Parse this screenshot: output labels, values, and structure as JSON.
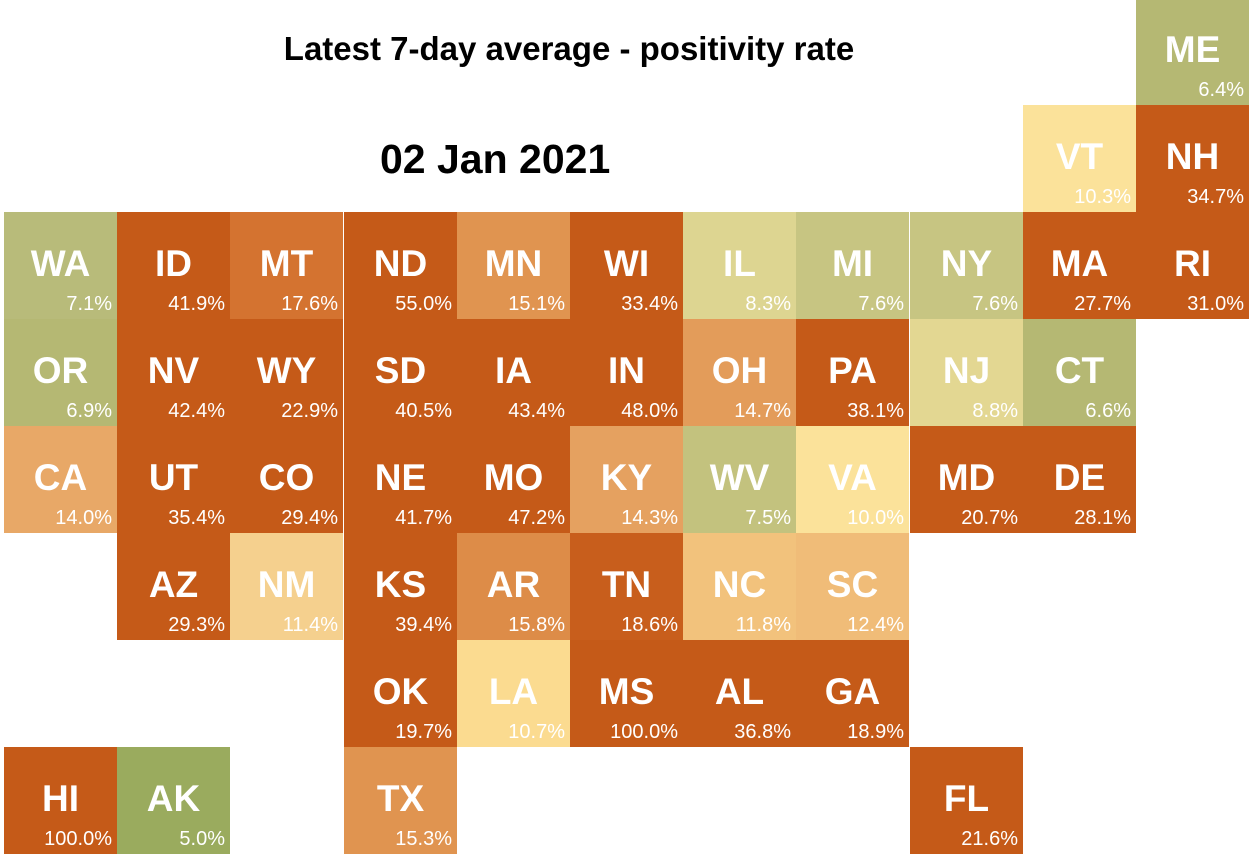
{
  "title": "Latest 7-day average - positivity rate",
  "date": "02 Jan 2021",
  "colors": {
    "green": "#9aab5e",
    "olive_green": "#b5b873",
    "light_olive": "#cfcb8b",
    "pale_yellow_green": "#ddd591",
    "pale_yellow": "#fbe29a",
    "light_orange": "#f2c27c",
    "orange_tan": "#e8a867",
    "orange": "#e09450",
    "dark_orange": "#d47330",
    "rust": "#c55a18"
  },
  "states": [
    {
      "abbr": "ME",
      "value": "6.4%",
      "color": "#b5b873"
    },
    {
      "abbr": "VT",
      "value": "10.3%",
      "color": "#fbe29a"
    },
    {
      "abbr": "NH",
      "value": "34.7%",
      "color": "#c55a18"
    },
    {
      "abbr": "WA",
      "value": "7.1%",
      "color": "#b8bb7a"
    },
    {
      "abbr": "ID",
      "value": "41.9%",
      "color": "#c55a18"
    },
    {
      "abbr": "MT",
      "value": "17.6%",
      "color": "#d47330"
    },
    {
      "abbr": "ND",
      "value": "55.0%",
      "color": "#c55a18"
    },
    {
      "abbr": "MN",
      "value": "15.1%",
      "color": "#e09450"
    },
    {
      "abbr": "WI",
      "value": "33.4%",
      "color": "#c55a18"
    },
    {
      "abbr": "IL",
      "value": "8.3%",
      "color": "#ddd591"
    },
    {
      "abbr": "MI",
      "value": "7.6%",
      "color": "#c7c582"
    },
    {
      "abbr": "NY",
      "value": "7.6%",
      "color": "#c7c582"
    },
    {
      "abbr": "MA",
      "value": "27.7%",
      "color": "#c55a18"
    },
    {
      "abbr": "RI",
      "value": "31.0%",
      "color": "#c55a18"
    },
    {
      "abbr": "OR",
      "value": "6.9%",
      "color": "#b5b873"
    },
    {
      "abbr": "NV",
      "value": "42.4%",
      "color": "#c55a18"
    },
    {
      "abbr": "WY",
      "value": "22.9%",
      "color": "#c55a18"
    },
    {
      "abbr": "SD",
      "value": "40.5%",
      "color": "#c55a18"
    },
    {
      "abbr": "IA",
      "value": "43.4%",
      "color": "#c55a18"
    },
    {
      "abbr": "IN",
      "value": "48.0%",
      "color": "#c55a18"
    },
    {
      "abbr": "OH",
      "value": "14.7%",
      "color": "#e39c5a"
    },
    {
      "abbr": "PA",
      "value": "38.1%",
      "color": "#c55a18"
    },
    {
      "abbr": "NJ",
      "value": "8.8%",
      "color": "#e3d792"
    },
    {
      "abbr": "CT",
      "value": "6.6%",
      "color": "#b5b873"
    },
    {
      "abbr": "CA",
      "value": "14.0%",
      "color": "#e8a867"
    },
    {
      "abbr": "UT",
      "value": "35.4%",
      "color": "#c55a18"
    },
    {
      "abbr": "CO",
      "value": "29.4%",
      "color": "#c55a18"
    },
    {
      "abbr": "NE",
      "value": "41.7%",
      "color": "#c55a18"
    },
    {
      "abbr": "MO",
      "value": "47.2%",
      "color": "#c55a18"
    },
    {
      "abbr": "KY",
      "value": "14.3%",
      "color": "#e5a160"
    },
    {
      "abbr": "WV",
      "value": "7.5%",
      "color": "#c3c27e"
    },
    {
      "abbr": "VA",
      "value": "10.0%",
      "color": "#fbe29a"
    },
    {
      "abbr": "MD",
      "value": "20.7%",
      "color": "#c55a18"
    },
    {
      "abbr": "DE",
      "value": "28.1%",
      "color": "#c55a18"
    },
    {
      "abbr": "AZ",
      "value": "29.3%",
      "color": "#c55a18"
    },
    {
      "abbr": "NM",
      "value": "11.4%",
      "color": "#f5d08e"
    },
    {
      "abbr": "KS",
      "value": "39.4%",
      "color": "#c55a18"
    },
    {
      "abbr": "AR",
      "value": "15.8%",
      "color": "#dd8c48"
    },
    {
      "abbr": "TN",
      "value": "18.6%",
      "color": "#c85e1c"
    },
    {
      "abbr": "NC",
      "value": "11.8%",
      "color": "#f2c27c"
    },
    {
      "abbr": "SC",
      "value": "12.4%",
      "color": "#f0bc78"
    },
    {
      "abbr": "OK",
      "value": "19.7%",
      "color": "#c55a18"
    },
    {
      "abbr": "LA",
      "value": "10.7%",
      "color": "#fbdb90"
    },
    {
      "abbr": "MS",
      "value": "100.0%",
      "color": "#c55a18"
    },
    {
      "abbr": "AL",
      "value": "36.8%",
      "color": "#c55a18"
    },
    {
      "abbr": "GA",
      "value": "18.9%",
      "color": "#c55a18"
    },
    {
      "abbr": "HI",
      "value": "100.0%",
      "color": "#c55a18"
    },
    {
      "abbr": "AK",
      "value": "5.0%",
      "color": "#9aab5e"
    },
    {
      "abbr": "TX",
      "value": "15.3%",
      "color": "#e09450"
    },
    {
      "abbr": "FL",
      "value": "21.6%",
      "color": "#c55a18"
    }
  ]
}
